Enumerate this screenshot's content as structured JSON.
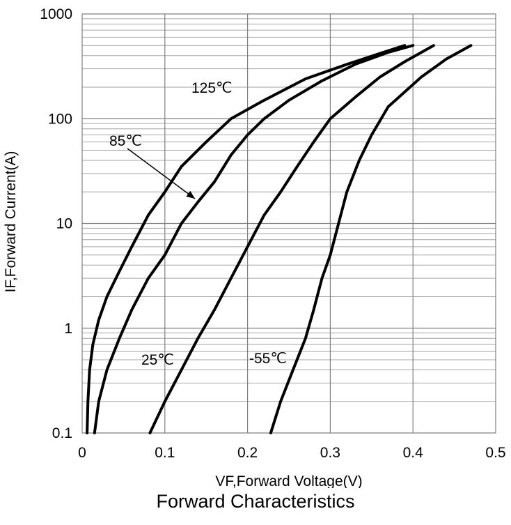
{
  "chart_data": {
    "type": "line",
    "title": "",
    "caption": "Forward Characteristics",
    "xlabel": "VF,Forward Voltage(V)",
    "ylabel": "IF,Forward Current(A)",
    "xlim": [
      0,
      0.5
    ],
    "ylim": [
      0.1,
      1000
    ],
    "yscale": "log",
    "grid": true,
    "x_ticks": [
      "0",
      "0.1",
      "0.2",
      "0.3",
      "0.4",
      "0.5"
    ],
    "y_ticks": [
      "0.1",
      "1",
      "10",
      "100",
      "1000"
    ],
    "series": [
      {
        "name": "125℃",
        "points": [
          [
            0.006,
            0.1
          ],
          [
            0.007,
            0.2
          ],
          [
            0.009,
            0.4
          ],
          [
            0.013,
            0.7
          ],
          [
            0.02,
            1.2
          ],
          [
            0.03,
            2
          ],
          [
            0.045,
            3.5
          ],
          [
            0.06,
            6
          ],
          [
            0.08,
            12
          ],
          [
            0.1,
            20
          ],
          [
            0.12,
            35
          ],
          [
            0.15,
            60
          ],
          [
            0.18,
            100
          ],
          [
            0.22,
            150
          ],
          [
            0.27,
            240
          ],
          [
            0.32,
            330
          ],
          [
            0.36,
            420
          ],
          [
            0.39,
            500
          ]
        ]
      },
      {
        "name": "85℃",
        "points": [
          [
            0.015,
            0.1
          ],
          [
            0.02,
            0.2
          ],
          [
            0.03,
            0.4
          ],
          [
            0.045,
            0.8
          ],
          [
            0.06,
            1.5
          ],
          [
            0.08,
            3
          ],
          [
            0.1,
            5
          ],
          [
            0.12,
            10
          ],
          [
            0.14,
            16
          ],
          [
            0.16,
            25
          ],
          [
            0.18,
            45
          ],
          [
            0.2,
            70
          ],
          [
            0.22,
            100
          ],
          [
            0.25,
            150
          ],
          [
            0.29,
            230
          ],
          [
            0.33,
            330
          ],
          [
            0.37,
            430
          ],
          [
            0.4,
            500
          ]
        ]
      },
      {
        "name": "25℃",
        "points": [
          [
            0.082,
            0.1
          ],
          [
            0.1,
            0.2
          ],
          [
            0.12,
            0.4
          ],
          [
            0.14,
            0.8
          ],
          [
            0.16,
            1.5
          ],
          [
            0.18,
            3
          ],
          [
            0.2,
            6
          ],
          [
            0.22,
            12
          ],
          [
            0.24,
            20
          ],
          [
            0.26,
            35
          ],
          [
            0.28,
            60
          ],
          [
            0.3,
            100
          ],
          [
            0.33,
            160
          ],
          [
            0.36,
            250
          ],
          [
            0.39,
            350
          ],
          [
            0.425,
            500
          ]
        ]
      },
      {
        "name": "-55℃",
        "points": [
          [
            0.228,
            0.1
          ],
          [
            0.24,
            0.2
          ],
          [
            0.255,
            0.4
          ],
          [
            0.27,
            0.8
          ],
          [
            0.28,
            1.5
          ],
          [
            0.29,
            3
          ],
          [
            0.3,
            5
          ],
          [
            0.31,
            10
          ],
          [
            0.32,
            20
          ],
          [
            0.335,
            40
          ],
          [
            0.35,
            70
          ],
          [
            0.37,
            130
          ],
          [
            0.39,
            180
          ],
          [
            0.41,
            250
          ],
          [
            0.44,
            370
          ],
          [
            0.47,
            500
          ]
        ]
      }
    ],
    "annotations": [
      {
        "text": "125℃",
        "series": "125℃"
      },
      {
        "text": "85℃",
        "series": "85℃",
        "arrow": true
      },
      {
        "text": "25℃",
        "series": "25℃"
      },
      {
        "text": "-55℃",
        "series": "-55℃"
      }
    ],
    "line_color": "#000000",
    "grid_color": "#a6a6a6"
  }
}
